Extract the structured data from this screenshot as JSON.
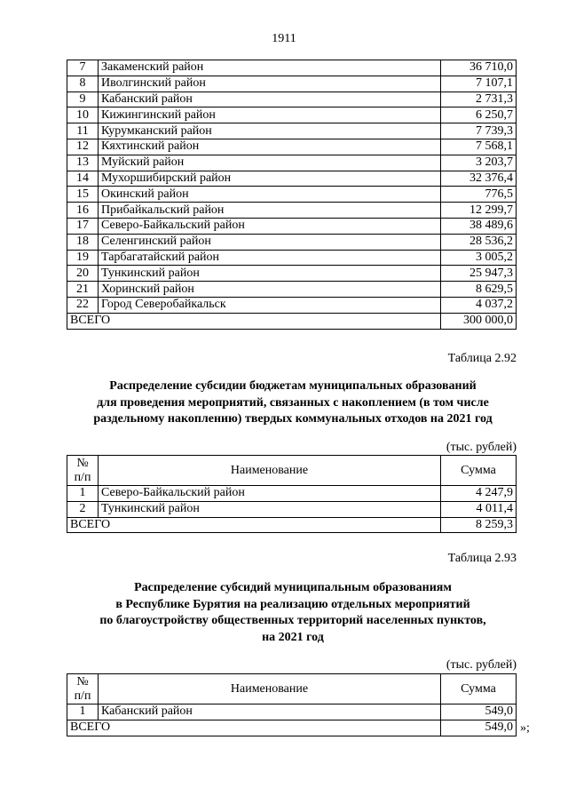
{
  "page_number": "1911",
  "table_main": {
    "rows": [
      {
        "n": "7",
        "name": "Закаменский район",
        "sum": "36 710,0"
      },
      {
        "n": "8",
        "name": "Иволгинский район",
        "sum": "7 107,1"
      },
      {
        "n": "9",
        "name": "Кабанский район",
        "sum": "2 731,3"
      },
      {
        "n": "10",
        "name": "Кижингинский район",
        "sum": "6 250,7"
      },
      {
        "n": "11",
        "name": "Курумканский район",
        "sum": "7 739,3"
      },
      {
        "n": "12",
        "name": "Кяхтинский район",
        "sum": "7 568,1"
      },
      {
        "n": "13",
        "name": "Муйский район",
        "sum": "3 203,7"
      },
      {
        "n": "14",
        "name": "Мухоршибирский район",
        "sum": "32 376,4"
      },
      {
        "n": "15",
        "name": "Окинский район",
        "sum": "776,5"
      },
      {
        "n": "16",
        "name": "Прибайкальский район",
        "sum": "12 299,7"
      },
      {
        "n": "17",
        "name": "Северо-Байкальский район",
        "sum": "38 489,6"
      },
      {
        "n": "18",
        "name": "Селенгинский район",
        "sum": "28 536,2"
      },
      {
        "n": "19",
        "name": "Тарбагатайский район",
        "sum": "3 005,2"
      },
      {
        "n": "20",
        "name": "Тункинский район",
        "sum": "25 947,3"
      },
      {
        "n": "21",
        "name": "Хоринский район",
        "sum": "8 629,5"
      },
      {
        "n": "22",
        "name": "Город Северобайкальск",
        "sum": "4 037,2"
      }
    ],
    "total_label": "ВСЕГО",
    "total": "300 000,0"
  },
  "table_292": {
    "caption": "Таблица 2.92",
    "title": [
      "Распределение субсидии бюджетам муниципальных образований",
      "для проведения мероприятий, связанных с накоплением (в том числе",
      "раздельному накоплению) твердых коммунальных отходов на 2021 год"
    ],
    "units": "(тыс. рублей)",
    "headers": {
      "n1": "№",
      "n2": "п/п",
      "name": "Наименование",
      "sum": "Сумма"
    },
    "rows": [
      {
        "n": "1",
        "name": "Северо-Байкальский район",
        "sum": "4 247,9"
      },
      {
        "n": "2",
        "name": "Тункинский район",
        "sum": "4 011,4"
      }
    ],
    "total_label": "ВСЕГО",
    "total": "8 259,3"
  },
  "table_293": {
    "caption": "Таблица 2.93",
    "title": [
      "Распределение субсидий муниципальным образованиям",
      "в Республике Бурятия на реализацию отдельных мероприятий",
      "по благоустройству общественных территорий населенных пунктов,",
      "на 2021 год"
    ],
    "units": "(тыс. рублей)",
    "headers": {
      "n1": "№",
      "n2": "п/п",
      "name": "Наименование",
      "sum": "Сумма"
    },
    "rows": [
      {
        "n": "1",
        "name": "Кабанский район",
        "sum": "549,0"
      }
    ],
    "total_label": "ВСЕГО",
    "total": "549,0",
    "closing": "»;"
  }
}
